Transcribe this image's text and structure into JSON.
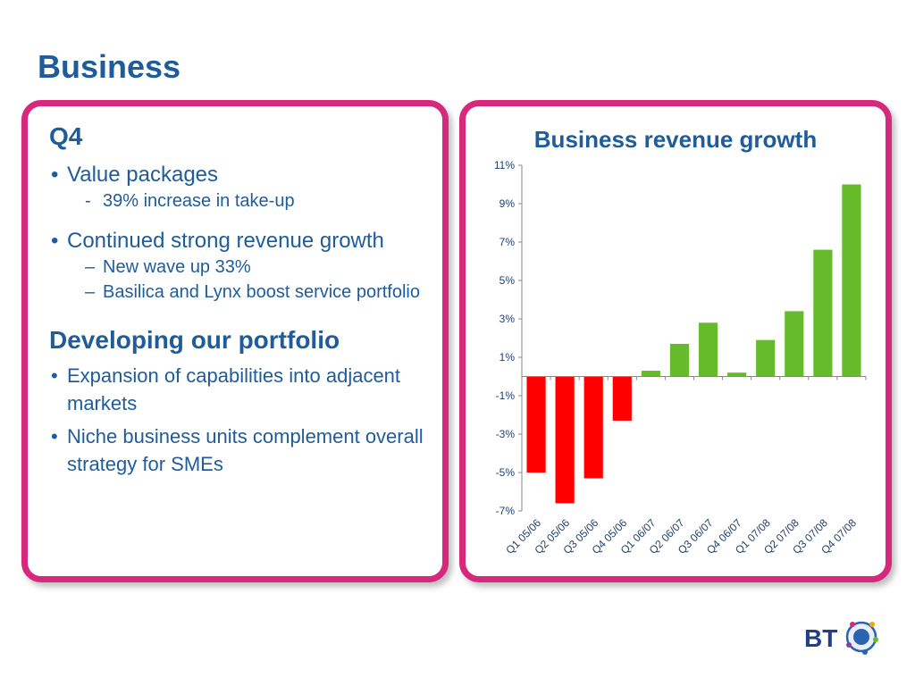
{
  "slide": {
    "title": "Business"
  },
  "left_panel": {
    "heading_q4": "Q4",
    "bullet1": "Value packages",
    "bullet1_sub": "39% increase in take-up",
    "bullet1_sub_marker": "-",
    "bullet2": "Continued strong revenue growth",
    "bullet2_subs": [
      "New wave up 33%",
      "Basilica and Lynx boost service portfolio"
    ],
    "sub_marker": "–",
    "heading_dev": "Developing our portfolio",
    "dev_bullets": [
      "Expansion of capabilities into adjacent markets",
      "Niche business units complement overall strategy for SMEs"
    ]
  },
  "logo": {
    "text": "BT",
    "icon": "bt-globe-logo-icon"
  },
  "colors": {
    "brand_blue": "#1f5c99",
    "panel_border": "#d6287c",
    "negative_bar": "#ff0000",
    "positive_bar": "#66bb2a"
  },
  "chart_data": {
    "type": "bar",
    "title": "Business revenue growth",
    "xlabel": "",
    "ylabel": "",
    "categories": [
      "Q1 05/06",
      "Q2 05/06",
      "Q3 05/06",
      "Q4 05/06",
      "Q1 06/07",
      "Q2 06/07",
      "Q3 06/07",
      "Q4 06/07",
      "Q1 07/08",
      "Q2 07/08",
      "Q3 07/08",
      "Q4 07/08"
    ],
    "values": [
      -5.0,
      -6.6,
      -5.3,
      -2.3,
      0.3,
      1.7,
      2.8,
      0.2,
      1.9,
      3.4,
      6.6,
      10.0
    ],
    "ylim": [
      -7,
      11
    ],
    "yticks": [
      11,
      9,
      7,
      5,
      3,
      1,
      -1,
      -3,
      -5,
      -7
    ],
    "ytick_labels": [
      "11%",
      "9%",
      "7%",
      "5%",
      "3%",
      "1%",
      "-1%",
      "-3%",
      "-5%",
      "-7%"
    ],
    "grid": false,
    "legend": "none"
  }
}
